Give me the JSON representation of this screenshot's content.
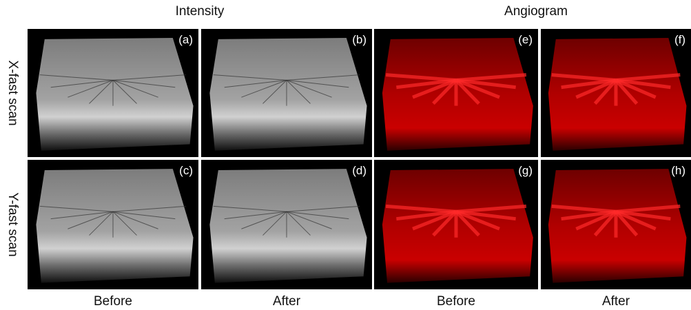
{
  "headers": [
    "Intensity",
    "Angiogram"
  ],
  "row_labels": [
    "X-fast scan",
    "Y-fast scan"
  ],
  "column_labels": [
    "Before",
    "After",
    "Before",
    "After"
  ],
  "panels": [
    [
      "(a)",
      "(b)",
      "(e)",
      "(f)"
    ],
    [
      "(c)",
      "(d)",
      "(g)",
      "(h)"
    ]
  ]
}
